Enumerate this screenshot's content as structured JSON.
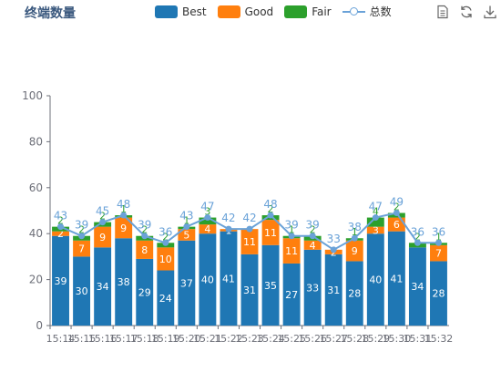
{
  "chart_data": {
    "type": "bar",
    "title": "终端数量",
    "categories": [
      "15:14",
      "15:15",
      "15:16",
      "15:17",
      "15:18",
      "15:19",
      "15:20",
      "15:21",
      "15:22",
      "15:23",
      "15:24",
      "15:25",
      "15:26",
      "15:27",
      "15:28",
      "15:29",
      "15:30",
      "15:31",
      "15:32"
    ],
    "series": [
      {
        "name": "Best",
        "type": "bar",
        "stack": true,
        "color": "#1f77b4",
        "values": [
          39,
          30,
          34,
          38,
          29,
          24,
          37,
          40,
          41,
          31,
          35,
          27,
          33,
          31,
          28,
          40,
          41,
          34,
          28
        ]
      },
      {
        "name": "Good",
        "type": "bar",
        "stack": true,
        "color": "#ff7f0e",
        "values": [
          2,
          7,
          9,
          9,
          8,
          10,
          5,
          4,
          1,
          11,
          11,
          11,
          4,
          2,
          9,
          3,
          6,
          0,
          7
        ]
      },
      {
        "name": "Fair",
        "type": "bar",
        "stack": true,
        "color": "#2ca02c",
        "values": [
          2,
          2,
          2,
          1,
          2,
          2,
          1,
          3,
          0,
          0,
          2,
          1,
          2,
          0,
          1,
          4,
          2,
          2,
          1
        ]
      },
      {
        "name": "总数",
        "type": "line",
        "color": "#6aa2d8",
        "values": [
          43,
          39,
          45,
          48,
          39,
          36,
          43,
          47,
          42,
          42,
          48,
          39,
          39,
          33,
          38,
          47,
          49,
          36,
          36
        ]
      }
    ],
    "ylim": [
      0,
      100
    ],
    "yticks": [
      0,
      20,
      40,
      60,
      80,
      100
    ],
    "legend_position": "top-center",
    "grid": false
  },
  "toolbox": {
    "icons": [
      "data-view-icon",
      "refresh-icon",
      "download-icon"
    ]
  }
}
